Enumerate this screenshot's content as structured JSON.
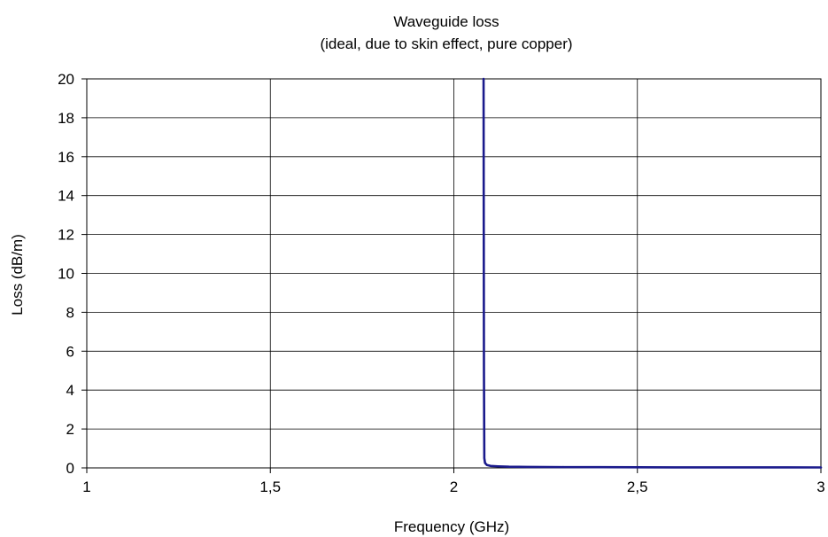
{
  "chart_data": {
    "type": "line",
    "title": "Waveguide loss",
    "subtitle": "(ideal, due to skin effect, pure copper)",
    "xlabel": "Frequency (GHz)",
    "ylabel": "Loss (dB/m)",
    "xlim": [
      1,
      3
    ],
    "ylim": [
      0,
      20
    ],
    "x_ticks": [
      1,
      1.5,
      2,
      2.5,
      3
    ],
    "x_tick_labels": [
      "1",
      "1,5",
      "2",
      "2,5",
      "3"
    ],
    "y_ticks": [
      0,
      2,
      4,
      6,
      8,
      10,
      12,
      14,
      16,
      18,
      20
    ],
    "y_tick_labels": [
      "0",
      "2",
      "4",
      "6",
      "8",
      "10",
      "12",
      "14",
      "16",
      "18",
      "20"
    ],
    "grid": true,
    "legend": "none",
    "series": [
      {
        "color": "#1a1a8c",
        "x": [
          2.081,
          2.082,
          2.083,
          2.085,
          2.09,
          2.1,
          2.12,
          2.15,
          2.2,
          2.3,
          2.4,
          2.5,
          2.6,
          2.7,
          2.8,
          2.9,
          3.0
        ],
        "y": [
          20,
          5,
          0.5,
          0.25,
          0.15,
          0.1,
          0.08,
          0.06,
          0.05,
          0.04,
          0.035,
          0.03,
          0.028,
          0.026,
          0.025,
          0.024,
          0.023
        ]
      }
    ]
  }
}
